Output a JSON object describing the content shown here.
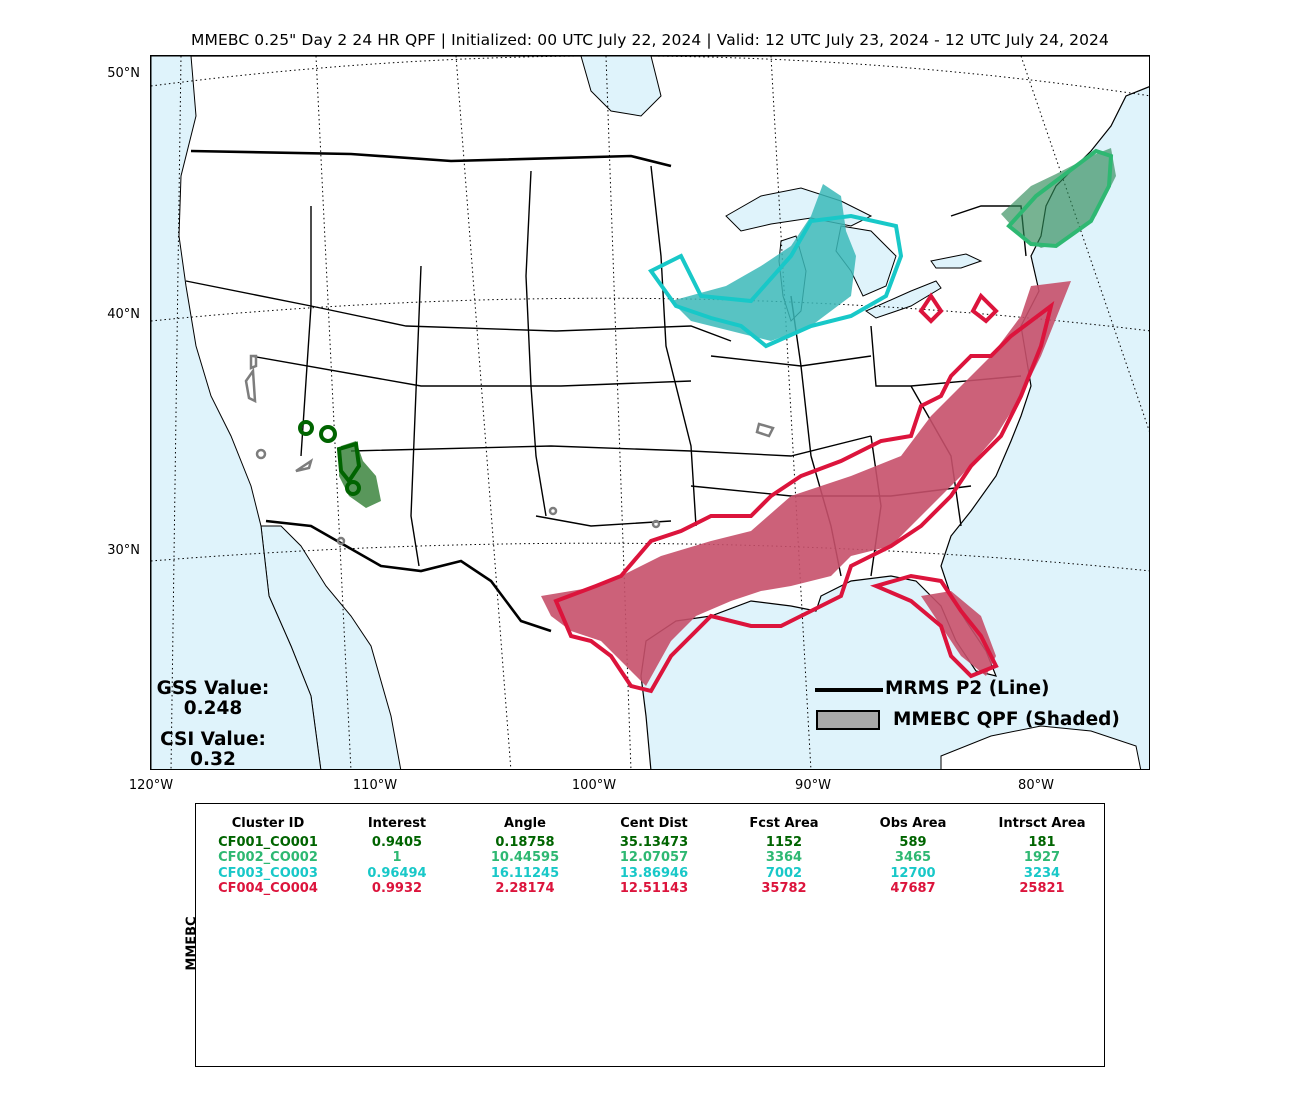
{
  "title": "MMEBC 0.25\" Day 2 24 HR QPF | Initialized: 00 UTC July 22, 2024 | Valid: 12 UTC July 23, 2024 - 12 UTC July 24, 2024",
  "map": {
    "lat_labels": [
      "50°N",
      "40°N",
      "30°N"
    ],
    "lon_labels": [
      "120°W",
      "110°W",
      "100°W",
      "90°W",
      "80°W"
    ],
    "ocean_color": "#dff3fb",
    "land_color": "#ffffff"
  },
  "stats": {
    "gss_label": "GSS Value:",
    "gss_value": "0.248",
    "csi_label": "CSI Value:",
    "csi_value": "0.32"
  },
  "legend": {
    "line_label": "MRMS P2 (Line)",
    "shaded_label": "MMEBC QPF (Shaded)"
  },
  "clusters": {
    "colors": [
      "#006400",
      "#2eb872",
      "#18c8c8",
      "#dc143c"
    ]
  },
  "table": {
    "y_label": "MMEBC",
    "headers": [
      "Cluster ID",
      "Interest",
      "Angle",
      "Cent Dist",
      "Fcst Area",
      "Obs Area",
      "Intrsct Area"
    ],
    "rows": [
      {
        "color": "#006400",
        "cells": [
          "CF001_CO001",
          "0.9405",
          "0.18758",
          "35.13473",
          "1152",
          "589",
          "181"
        ]
      },
      {
        "color": "#2eb872",
        "cells": [
          "CF002_CO002",
          "1",
          "10.44595",
          "12.07057",
          "3364",
          "3465",
          "1927"
        ]
      },
      {
        "color": "#18c8c8",
        "cells": [
          "CF003_CO003",
          "0.96494",
          "16.11245",
          "13.86946",
          "7002",
          "12700",
          "3234"
        ]
      },
      {
        "color": "#dc143c",
        "cells": [
          "CF004_CO004",
          "0.9932",
          "2.28174",
          "12.51143",
          "35782",
          "47687",
          "25821"
        ]
      }
    ]
  }
}
